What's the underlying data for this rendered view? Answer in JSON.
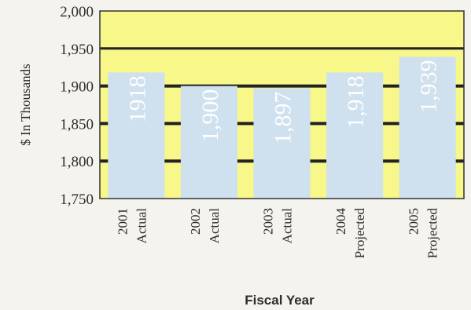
{
  "chart_data": {
    "type": "bar",
    "categories": [
      [
        "2001",
        "Actual"
      ],
      [
        "2002",
        "Actual"
      ],
      [
        "2003",
        "Actual"
      ],
      [
        "2004",
        "Projected"
      ],
      [
        "2005",
        "Projected"
      ]
    ],
    "values": [
      1918,
      1900,
      1897,
      1918,
      1939
    ],
    "data_labels": [
      "1918",
      "1,900",
      "1,897",
      "1,918",
      "1,939"
    ],
    "xlabel": "Fiscal Year",
    "ylabel": "$ In Thousands",
    "ylim": [
      1750,
      2000
    ],
    "yticks": [
      1750,
      1800,
      1850,
      1900,
      1950,
      2000
    ],
    "ytick_labels": [
      "1,750",
      "1,800",
      "1,850",
      "1,900",
      "1,950",
      "2,000"
    ],
    "grid": true,
    "colors": {
      "plot_background": "#f7f78a",
      "bar": "#cfe0ee",
      "gridline": "#222222",
      "frame": "#333333"
    }
  }
}
